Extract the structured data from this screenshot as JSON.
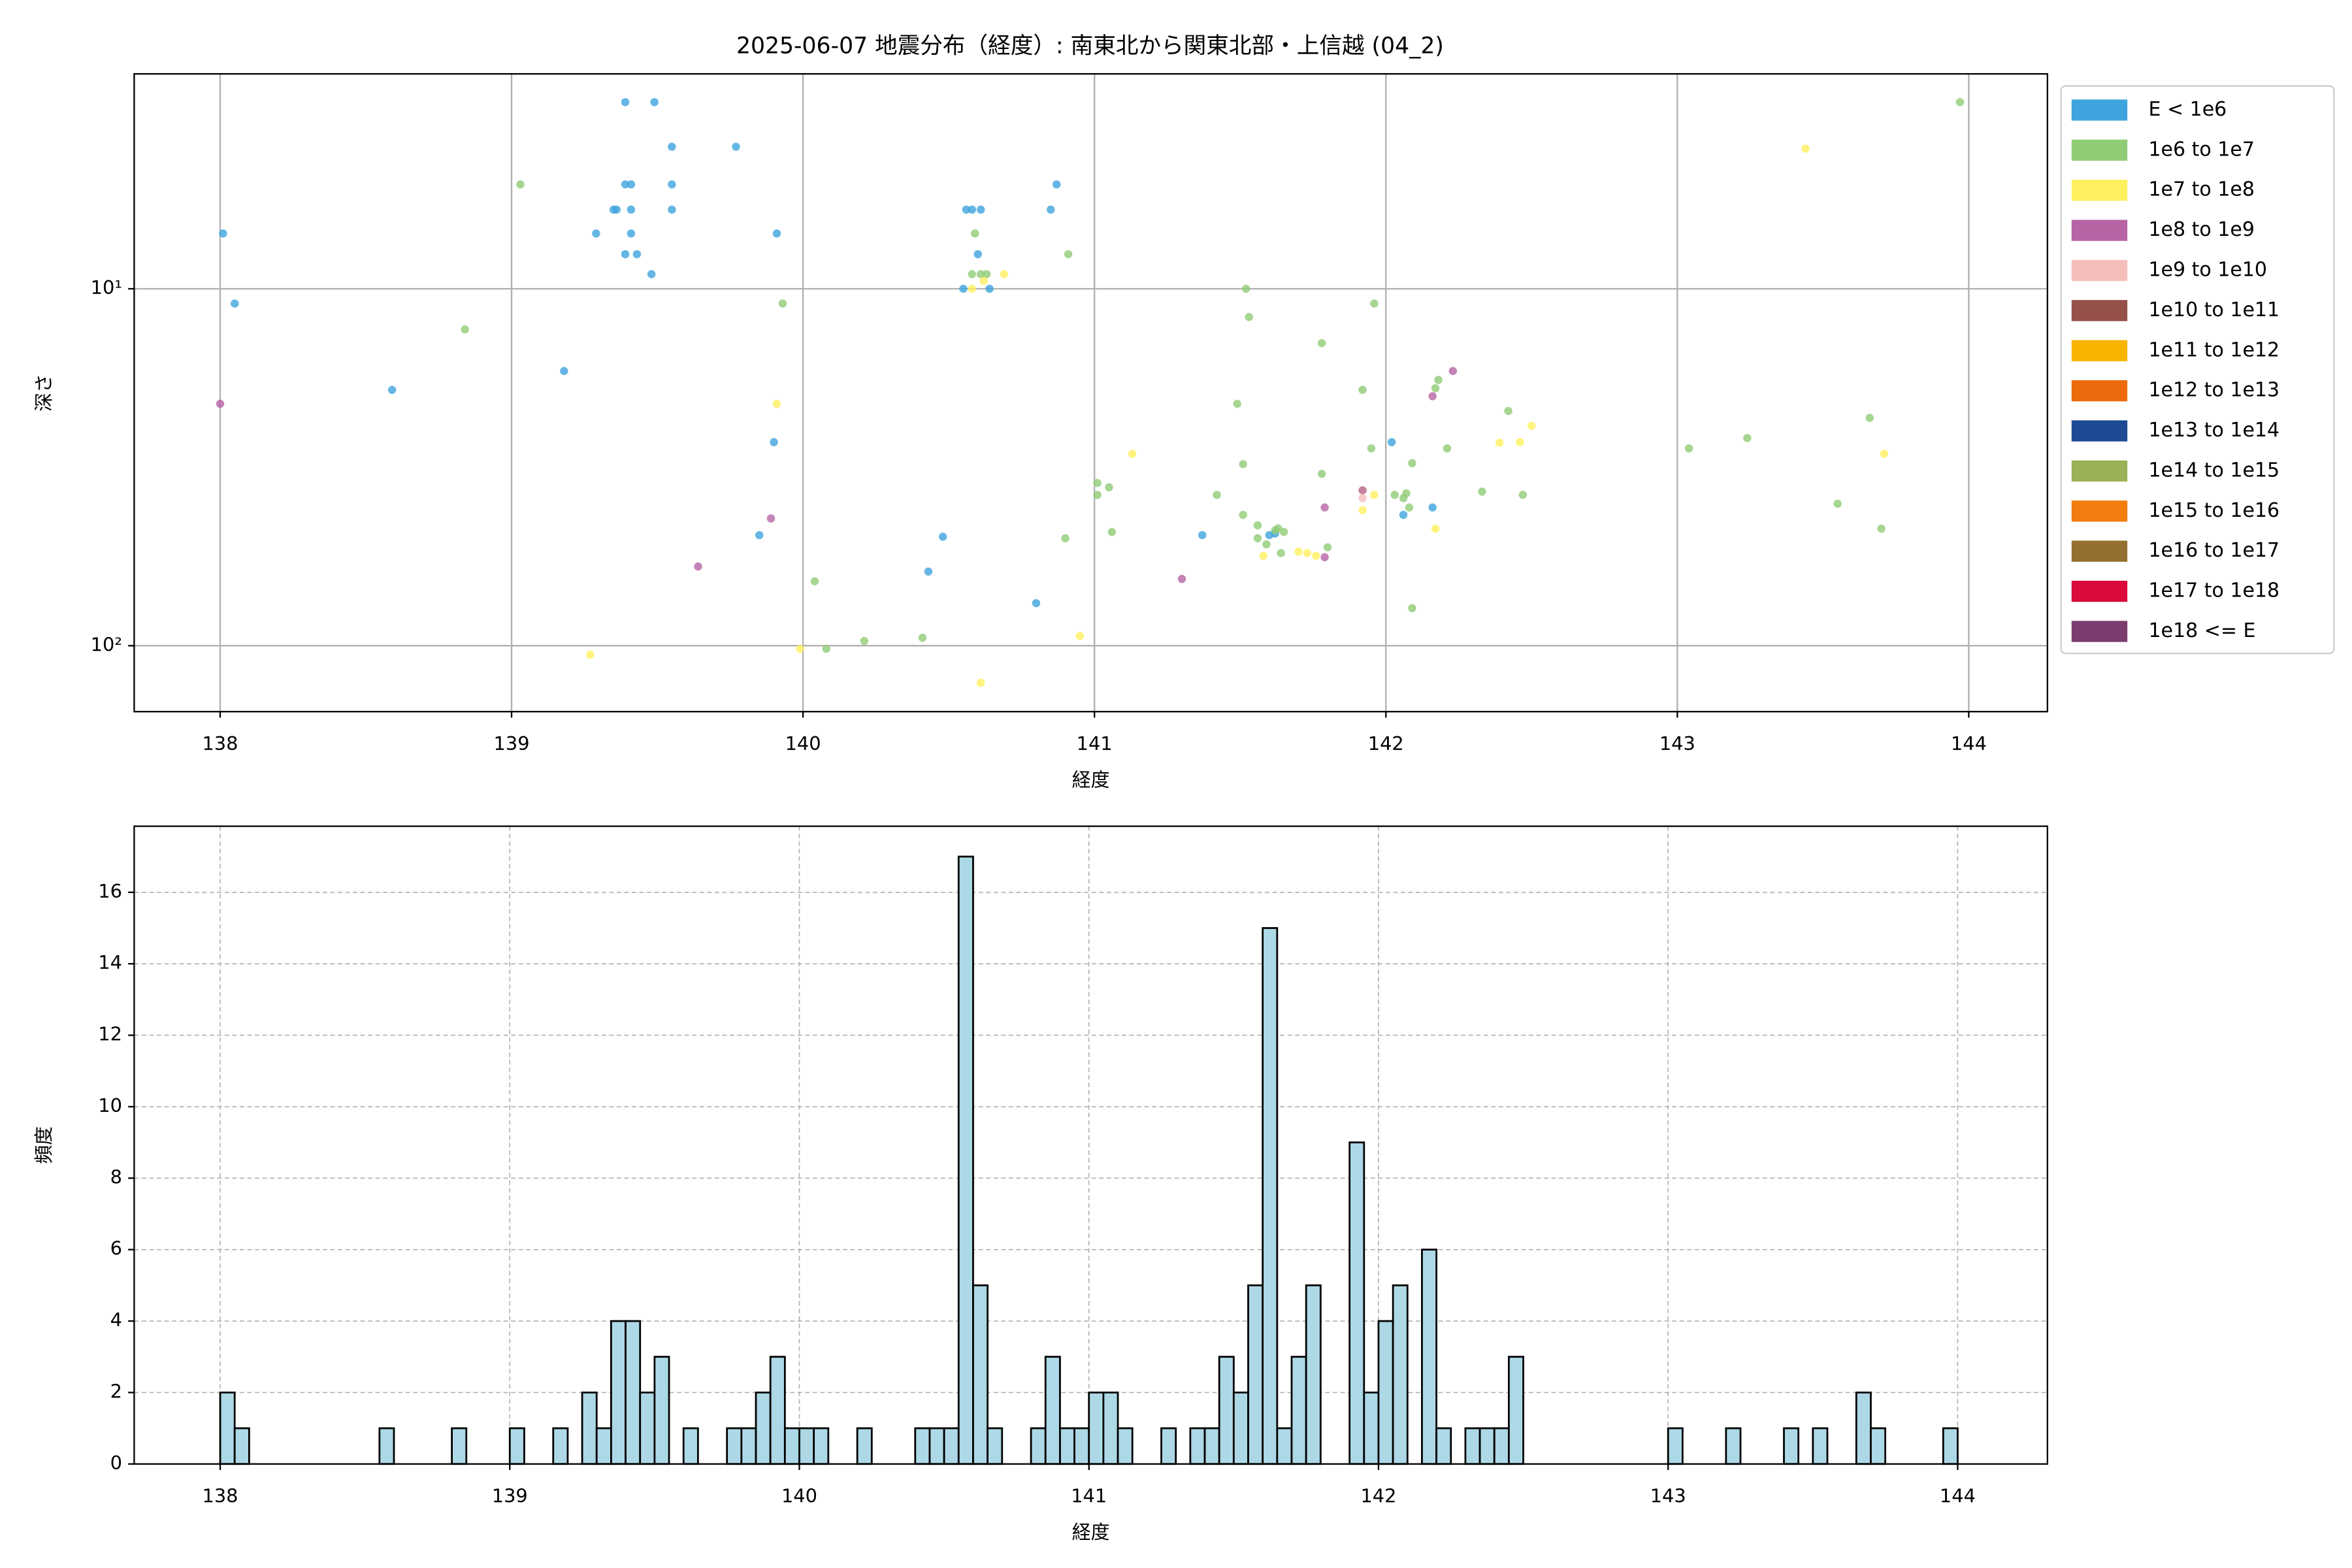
{
  "chart_data": [
    {
      "type": "scatter",
      "title": "2025-06-07 地震分布（経度）: 南東北から関東北部・上信越 (04_2)",
      "xlabel": "経度",
      "ylabel": "深さ",
      "xlim": [
        137.705,
        144.27
      ],
      "xticks": [
        138,
        139,
        140,
        141,
        142,
        143,
        144
      ],
      "ylim": [
        153,
        2.5
      ],
      "y_scale": "log",
      "yticks": [
        {
          "value": 10,
          "label": "10¹"
        },
        {
          "value": 100,
          "label": "10²"
        }
      ],
      "grid": true,
      "legend": "outside-right",
      "series": [
        {
          "name": "E < 1e6",
          "color": "#3fa4dd",
          "x": [
            138.01,
            138.05,
            138.59,
            139.18,
            139.29,
            139.35,
            139.36,
            139.39,
            139.39,
            139.41,
            139.41,
            139.41,
            139.39,
            139.43,
            139.48,
            139.49,
            139.55,
            139.55,
            139.55,
            139.77,
            139.91,
            139.9,
            139.85,
            140.48,
            140.43,
            140.55,
            140.56,
            140.58,
            140.61,
            140.6,
            140.64,
            140.87,
            140.85,
            140.8,
            141.37,
            141.6,
            141.62,
            142.02,
            142.06,
            142.16
          ],
          "values": [
            7.0,
            11.0,
            19.2,
            17,
            7,
            6,
            6,
            3.0,
            5.1,
            5.1,
            6,
            7,
            8,
            8,
            9.1,
            3.0,
            4.0,
            5.1,
            6,
            4.0,
            7,
            26.9,
            49,
            49.5,
            62,
            10,
            6,
            6,
            6,
            8,
            10,
            5.1,
            6,
            76,
            49,
            49,
            48.5,
            26.9,
            43,
            41
          ]
        },
        {
          "name": "1e6 to 1e7",
          "color": "#90cc75",
          "x": [
            139.03,
            138.84,
            139.93,
            140.04,
            140.08,
            140.21,
            140.41,
            140.58,
            140.59,
            140.61,
            140.63,
            140.91,
            140.9,
            141.01,
            141.01,
            141.05,
            141.06,
            141.42,
            141.49,
            141.51,
            141.51,
            141.52,
            141.53,
            141.56,
            141.56,
            141.59,
            141.62,
            141.63,
            141.64,
            141.65,
            141.78,
            141.78,
            141.8,
            141.92,
            141.95,
            141.96,
            142.09,
            142.07,
            142.06,
            142.03,
            142.08,
            142.09,
            142.17,
            142.18,
            142.21,
            142.33,
            142.42,
            142.47,
            143.04,
            143.24,
            143.55,
            143.66,
            143.7,
            143.97
          ],
          "values": [
            5.1,
            13,
            11,
            66,
            102,
            97,
            95,
            9.1,
            7,
            9.1,
            9.1,
            8,
            50,
            35,
            37.8,
            36,
            48,
            37.8,
            21,
            31,
            43,
            10,
            12,
            46,
            50,
            52,
            47.5,
            46.9,
            55,
            48,
            14.2,
            33,
            53,
            19.2,
            28,
            11,
            30.8,
            37.4,
            38.6,
            37.8,
            41,
            78.5,
            19,
            18,
            28,
            37,
            22,
            37.8,
            28,
            26.2,
            40,
            23,
            47,
            3.0
          ]
        },
        {
          "name": "1e7 to 1e8",
          "color": "#fff05f",
          "x": [
            139.27,
            139.91,
            139.99,
            140.61,
            140.58,
            140.62,
            140.69,
            140.95,
            141.13,
            141.58,
            141.7,
            141.73,
            141.76,
            141.92,
            141.92,
            141.96,
            142.17,
            142.39,
            142.46,
            142.5,
            143.44,
            143.71
          ],
          "values": [
            106,
            21,
            102,
            127,
            10,
            9.5,
            9.1,
            94,
            29,
            56,
            54.5,
            55,
            56,
            36.7,
            41.7,
            37.8,
            47,
            27,
            26.9,
            24.2,
            4.05,
            29
          ]
        },
        {
          "name": "1e8 to 1e9",
          "color": "#b764a5",
          "x": [
            138.0,
            139.89,
            139.64,
            141.3,
            141.79,
            141.79,
            141.92,
            142.16,
            142.23
          ],
          "values": [
            21,
            44,
            60,
            65,
            41,
            56.5,
            36.7,
            20,
            17
          ]
        },
        {
          "name": "1e9 to 1e10",
          "color": "#f4bfbb",
          "x": [
            141.92
          ],
          "values": [
            38.6
          ]
        },
        {
          "name": "1e10 to 1e11",
          "color": "#955049",
          "x": [],
          "values": []
        },
        {
          "name": "1e11 to 1e12",
          "color": "#f7b500",
          "x": [],
          "values": []
        },
        {
          "name": "1e12 to 1e13",
          "color": "#ec6a0c",
          "x": [],
          "values": []
        },
        {
          "name": "1e13 to 1e14",
          "color": "#1e4a93",
          "x": [],
          "values": []
        },
        {
          "name": "1e14 to 1e15",
          "color": "#9bb155",
          "x": [],
          "values": []
        },
        {
          "name": "1e15 to 1e16",
          "color": "#f27c0d",
          "x": [],
          "values": []
        },
        {
          "name": "1e16 to 1e17",
          "color": "#946f2f",
          "x": [],
          "values": []
        },
        {
          "name": "1e17 to 1e18",
          "color": "#da0a3a",
          "x": [],
          "values": []
        },
        {
          "name": "1e18 <= E",
          "color": "#7a3d6e",
          "x": [],
          "values": []
        }
      ]
    },
    {
      "type": "histogram",
      "xlabel": "経度",
      "ylabel": "頻度",
      "xlim": [
        137.703,
        144.31
      ],
      "xticks": [
        138,
        139,
        140,
        141,
        142,
        143,
        144
      ],
      "ylim": [
        0,
        17.85
      ],
      "yticks": [
        0,
        2,
        4,
        6,
        8,
        10,
        12,
        14,
        16
      ],
      "grid": "dashed",
      "color": "#add8e6",
      "edgecolor": "#000000",
      "bins": [
        138.0,
        138.05,
        138.1,
        138.15,
        138.2,
        138.25,
        138.3,
        138.35,
        138.4,
        138.45,
        138.5,
        138.55,
        138.6,
        138.65,
        138.7,
        138.75,
        138.8,
        138.85,
        138.9,
        138.95,
        139.0,
        139.05,
        139.1,
        139.15,
        139.2,
        139.25,
        139.3,
        139.35,
        139.4,
        139.45,
        139.5,
        139.55,
        139.6,
        139.65,
        139.7,
        139.75,
        139.8,
        139.85,
        139.9,
        139.95,
        140.0,
        140.05,
        140.1,
        140.15,
        140.2,
        140.25,
        140.3,
        140.35,
        140.4,
        140.45,
        140.5,
        140.55,
        140.6,
        140.65,
        140.7,
        140.75,
        140.8,
        140.85,
        140.9,
        140.95,
        141.0,
        141.05,
        141.1,
        141.15,
        141.2,
        141.25,
        141.3,
        141.35,
        141.4,
        141.45,
        141.5,
        141.55,
        141.6,
        141.65,
        141.7,
        141.75,
        141.8,
        141.85,
        141.9,
        141.95,
        142.0,
        142.05,
        142.1,
        142.15,
        142.2,
        142.25,
        142.3,
        142.35,
        142.4,
        142.45,
        142.5,
        142.55,
        142.6,
        142.65,
        142.7,
        142.75,
        142.8,
        142.85,
        142.9,
        142.95,
        143.0,
        143.05,
        143.1,
        143.15,
        143.2,
        143.25,
        143.3,
        143.35,
        143.4,
        143.45,
        143.5,
        143.55,
        143.6,
        143.65,
        143.7,
        143.75,
        143.8,
        143.85,
        143.9,
        143.95,
        144.0
      ],
      "counts": [
        2,
        1,
        0,
        0,
        0,
        0,
        0,
        0,
        0,
        0,
        0,
        1,
        0,
        0,
        0,
        0,
        1,
        0,
        0,
        0,
        1,
        0,
        0,
        1,
        0,
        2,
        1,
        4,
        4,
        2,
        3,
        0,
        1,
        0,
        0,
        1,
        1,
        2,
        3,
        1,
        1,
        1,
        0,
        0,
        1,
        0,
        0,
        0,
        1,
        1,
        1,
        17,
        5,
        1,
        0,
        0,
        1,
        3,
        1,
        1,
        2,
        2,
        1,
        0,
        0,
        1,
        0,
        1,
        1,
        3,
        2,
        5,
        15,
        1,
        3,
        5,
        0,
        0,
        9,
        2,
        4,
        5,
        0,
        6,
        1,
        0,
        1,
        1,
        1,
        3,
        0,
        0,
        0,
        0,
        0,
        0,
        0,
        0,
        0,
        0,
        1,
        0,
        0,
        0,
        1,
        0,
        0,
        0,
        1,
        0,
        1,
        0,
        0,
        2,
        1,
        0,
        0,
        0,
        0,
        1
      ]
    }
  ]
}
